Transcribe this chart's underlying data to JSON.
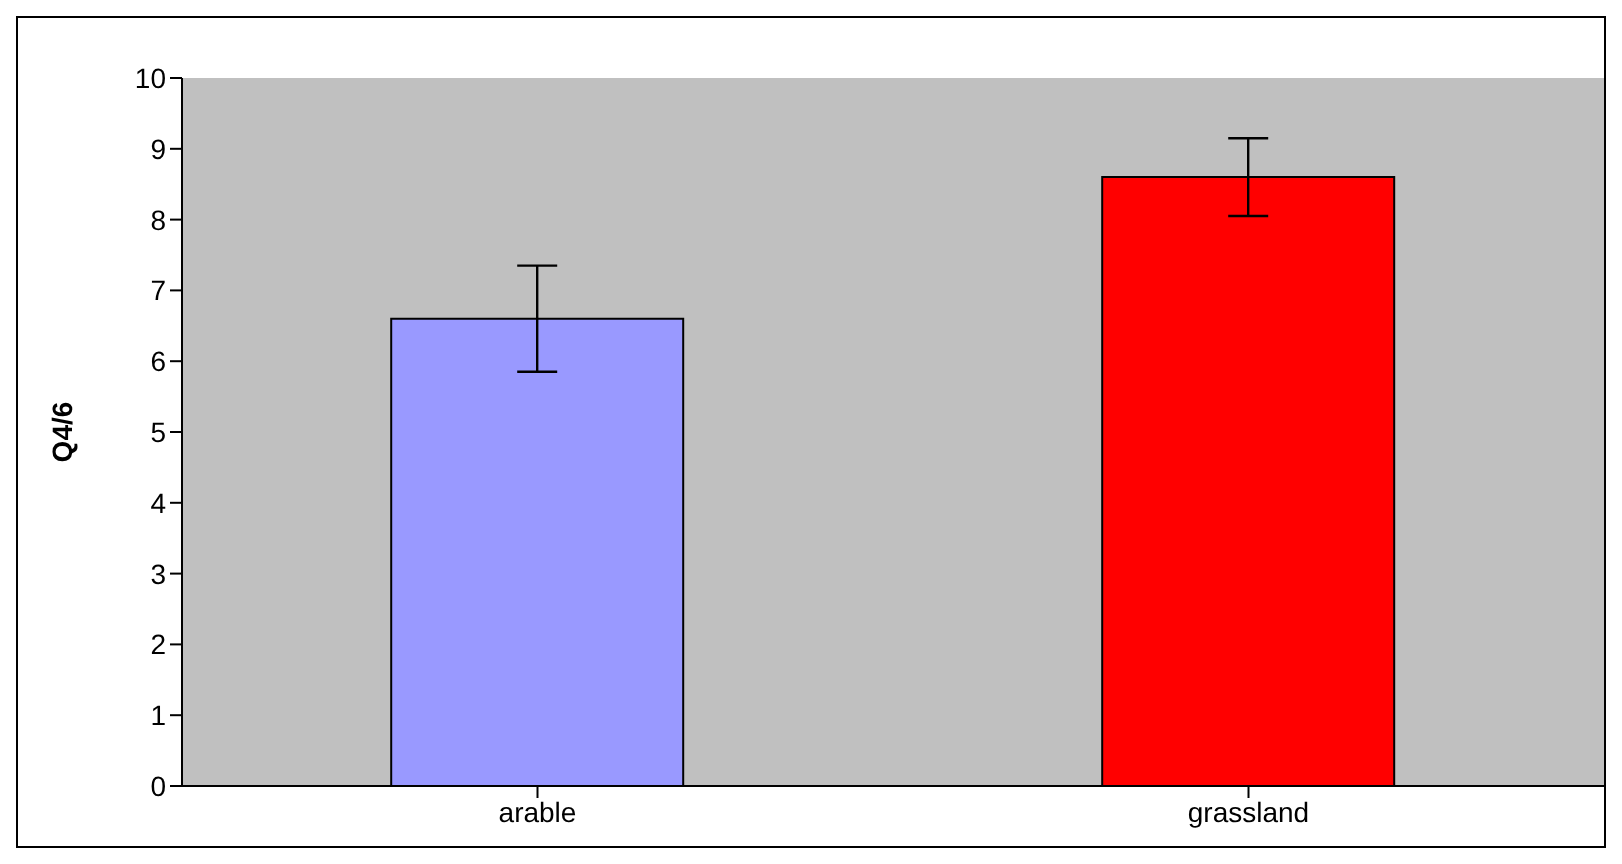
{
  "chart_data": {
    "type": "bar",
    "ylabel": "Q4/6",
    "categories": [
      "arable",
      "grassland"
    ],
    "values": [
      6.6,
      8.6
    ],
    "colors": [
      "#9999ff",
      "#ff0000"
    ],
    "errors": [
      0.75,
      0.55
    ],
    "ylim": [
      0,
      10
    ],
    "yticks": [
      0,
      1,
      2,
      3,
      4,
      5,
      6,
      7,
      8,
      9,
      10
    ],
    "grid": false
  }
}
